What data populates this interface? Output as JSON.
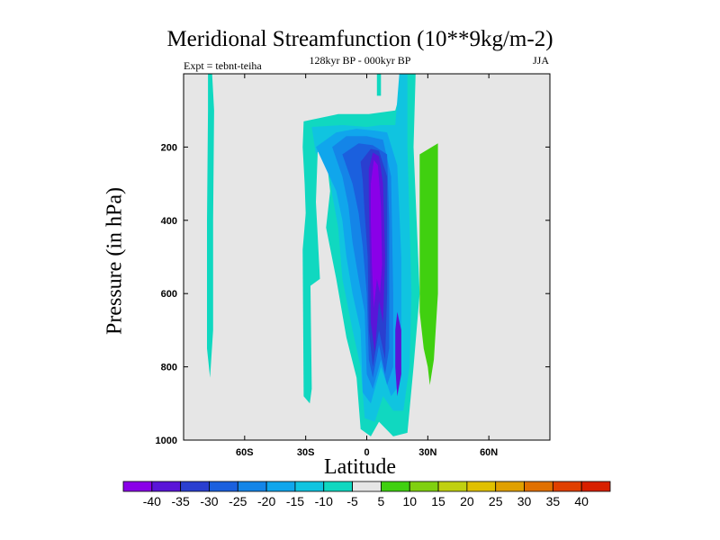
{
  "chart_data": {
    "type": "contour",
    "title": "Meridional Streamfunction (10**9kg/m-2)",
    "subtitle_left": "Expt = tebnt-teiha",
    "subtitle_center": "128kyr BP - 000kyr BP",
    "subtitle_right": "JJA",
    "xlabel": "Latitude",
    "ylabel": "Pressure (in hPa)",
    "xlim": [
      -90,
      90
    ],
    "ylim": [
      1000,
      0
    ],
    "x_ticks": [
      -60,
      -30,
      0,
      30,
      60
    ],
    "x_tick_labels": [
      "60S",
      "30S",
      "0",
      "30N",
      "60N"
    ],
    "y_ticks": [
      200,
      400,
      600,
      800,
      1000
    ],
    "y_tick_labels": [
      "200",
      "400",
      "600",
      "800",
      "1000"
    ],
    "background_color": "#e6e6e6",
    "colorbar": {
      "levels": [
        -40,
        -35,
        -30,
        -25,
        -20,
        -15,
        -10,
        -5,
        5,
        10,
        15,
        20,
        25,
        30,
        35,
        40
      ],
      "labels": [
        "-40",
        "-35",
        "-30",
        "-25",
        "-20",
        "-15",
        "-10",
        "-5",
        "5",
        "10",
        "15",
        "20",
        "25",
        "30",
        "35",
        "40"
      ],
      "colors": [
        "#8a00e8",
        "#5a15d8",
        "#2a3fd0",
        "#1b60de",
        "#1485e8",
        "#10a6ec",
        "#10c4e0",
        "#10d8c0",
        "#e6e6e6",
        "#40d010",
        "#80d010",
        "#c0d010",
        "#e0c000",
        "#e0a000",
        "#e07000",
        "#e04000",
        "#d82000"
      ]
    },
    "regions": [
      {
        "level": "-5",
        "color": "#10d8c0",
        "points": [
          [
            -78,
            0
          ],
          [
            -76,
            0
          ],
          [
            -75,
            100
          ],
          [
            -75.5,
            400
          ],
          [
            -75.5,
            700
          ],
          [
            -77,
            830
          ],
          [
            -78.5,
            750
          ],
          [
            -78.5,
            400
          ],
          [
            -78,
            100
          ]
        ]
      },
      {
        "level": "-5",
        "color": "#10d8c0",
        "points": [
          [
            5,
            0
          ],
          [
            7,
            0
          ],
          [
            7,
            60
          ],
          [
            5,
            60
          ]
        ]
      },
      {
        "level": "-5",
        "color": "#10d8c0",
        "points": [
          [
            -30,
            380
          ],
          [
            -28,
            430
          ],
          [
            -27,
            860
          ],
          [
            -28,
            900
          ],
          [
            -31,
            880
          ],
          [
            -31.5,
            480
          ]
        ]
      },
      {
        "level": "-5",
        "color": "#10d8c0",
        "points": [
          [
            -31,
            130
          ],
          [
            -14,
            110
          ],
          [
            1,
            110
          ],
          [
            14,
            100
          ],
          [
            19,
            0
          ],
          [
            24,
            0
          ],
          [
            23,
            200
          ],
          [
            26,
            600
          ],
          [
            23,
            800
          ],
          [
            20,
            980
          ],
          [
            13,
            990
          ],
          [
            6,
            950
          ],
          [
            2,
            990
          ],
          [
            -3,
            970
          ],
          [
            -5,
            830
          ],
          [
            -10,
            720
          ],
          [
            -15,
            560
          ],
          [
            -20,
            420
          ],
          [
            -18,
            320
          ],
          [
            -20,
            220
          ],
          [
            -24,
            200
          ],
          [
            -25,
            350
          ],
          [
            -23,
            560
          ],
          [
            -28,
            580
          ],
          [
            -29.5,
            460
          ],
          [
            -30.5,
            300
          ],
          [
            -31.5,
            200
          ]
        ]
      },
      {
        "level": "-10",
        "color": "#10c4e0",
        "points": [
          [
            -27,
            145
          ],
          [
            -12,
            140
          ],
          [
            0,
            145
          ],
          [
            7,
            140
          ],
          [
            14,
            140
          ],
          [
            16,
            0
          ],
          [
            20,
            0
          ],
          [
            20,
            200
          ],
          [
            22,
            600
          ],
          [
            21,
            800
          ],
          [
            18,
            920
          ],
          [
            13,
            920
          ],
          [
            8,
            880
          ],
          [
            4,
            950
          ],
          [
            -1,
            940
          ],
          [
            -3,
            800
          ],
          [
            -7,
            700
          ],
          [
            -12,
            560
          ],
          [
            -14,
            420
          ],
          [
            -17,
            330
          ],
          [
            -19,
            240
          ],
          [
            -22,
            200
          ],
          [
            -25,
            220
          ]
        ]
      },
      {
        "level": "-15",
        "color": "#10a6ec",
        "points": [
          [
            -25,
            200
          ],
          [
            -15,
            160
          ],
          [
            -5,
            150
          ],
          [
            4,
            155
          ],
          [
            10,
            160
          ],
          [
            15,
            250
          ],
          [
            17,
            500
          ],
          [
            17,
            700
          ],
          [
            16,
            850
          ],
          [
            12,
            880
          ],
          [
            7,
            800
          ],
          [
            2,
            900
          ],
          [
            -2,
            870
          ],
          [
            -3,
            700
          ],
          [
            -7,
            600
          ],
          [
            -10,
            500
          ],
          [
            -12,
            400
          ],
          [
            -15,
            320
          ]
        ]
      },
      {
        "level": "-20",
        "color": "#1485e8",
        "points": [
          [
            -17,
            200
          ],
          [
            -10,
            170
          ],
          [
            0,
            170
          ],
          [
            8,
            180
          ],
          [
            12,
            280
          ],
          [
            13,
            600
          ],
          [
            13,
            800
          ],
          [
            10,
            850
          ],
          [
            7,
            780
          ],
          [
            3,
            860
          ],
          [
            0,
            820
          ],
          [
            -1,
            650
          ],
          [
            -4,
            560
          ],
          [
            -7,
            460
          ],
          [
            -9,
            360
          ],
          [
            -12,
            280
          ]
        ]
      },
      {
        "level": "-25",
        "color": "#1b60de",
        "points": [
          [
            -12,
            220
          ],
          [
            -4,
            190
          ],
          [
            3,
            195
          ],
          [
            10,
            220
          ],
          [
            11,
            400
          ],
          [
            11,
            750
          ],
          [
            9,
            820
          ],
          [
            6,
            740
          ],
          [
            3,
            830
          ],
          [
            1,
            780
          ],
          [
            0,
            600
          ],
          [
            -2,
            470
          ],
          [
            -4,
            380
          ],
          [
            -7,
            300
          ]
        ]
      },
      {
        "level": "-30",
        "color": "#2a3fd0",
        "points": [
          [
            -3,
            240
          ],
          [
            2,
            205
          ],
          [
            6,
            210
          ],
          [
            10,
            280
          ],
          [
            10,
            600
          ],
          [
            9,
            780
          ],
          [
            6,
            700
          ],
          [
            3,
            800
          ],
          [
            1,
            700
          ],
          [
            0.5,
            500
          ],
          [
            -1,
            380
          ],
          [
            -2,
            290
          ]
        ]
      },
      {
        "level": "-35",
        "color": "#5a15d8",
        "points": [
          [
            1,
            260
          ],
          [
            3,
            215
          ],
          [
            6,
            225
          ],
          [
            8,
            300
          ],
          [
            9,
            500
          ],
          [
            8,
            680
          ],
          [
            6,
            620
          ],
          [
            4,
            760
          ],
          [
            2,
            680
          ],
          [
            1.5,
            480
          ],
          [
            1,
            340
          ]
        ]
      },
      {
        "level": "-40",
        "color": "#8a00e8",
        "points": [
          [
            2,
            300
          ],
          [
            3.5,
            235
          ],
          [
            5.5,
            250
          ],
          [
            7,
            360
          ],
          [
            7.5,
            520
          ],
          [
            6.5,
            600
          ],
          [
            5,
            560
          ],
          [
            3.5,
            640
          ],
          [
            2.5,
            520
          ],
          [
            2,
            400
          ]
        ]
      },
      {
        "level": "-35",
        "color": "#5a15d8",
        "points": [
          [
            15,
            650
          ],
          [
            17,
            700
          ],
          [
            17,
            820
          ],
          [
            15,
            880
          ],
          [
            14,
            800
          ],
          [
            14,
            700
          ]
        ]
      },
      {
        "level": "10",
        "color": "#40d010",
        "points": [
          [
            26,
            220
          ],
          [
            35,
            190
          ],
          [
            35,
            600
          ],
          [
            33,
            780
          ],
          [
            31,
            850
          ],
          [
            30,
            800
          ],
          [
            28,
            750
          ],
          [
            26,
            650
          ],
          [
            26,
            400
          ]
        ]
      }
    ]
  }
}
